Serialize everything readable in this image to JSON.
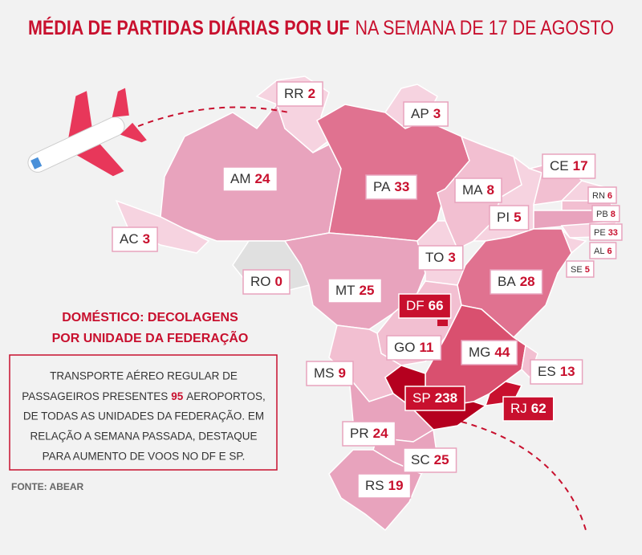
{
  "header": {
    "title": "MÉDIA DE PARTIDAS DIÁRIAS POR UF",
    "subtitle": "NA SEMANA DE 17 DE AGOSTO"
  },
  "legend": {
    "lines": [
      "DOMÉSTICO:  DECOLAGENS",
      "POR UNIDADE DA FEDERAÇÃO"
    ]
  },
  "note": {
    "lines": [
      "TRANSPORTE AÉREO REGULAR DE",
      {
        "before": "PASSAGEIROS PRESENTES",
        "highlight": "95",
        "after": "AEROPORTOS,"
      },
      "DE TODAS AS UNIDADES DA FEDERAÇÃO. EM",
      "RELAÇÃO A SEMANA PASSADA, DESTAQUE",
      "PARA AUMENTO DE VOOS NO DF E SP."
    ]
  },
  "source": "FONTE: ABEAR",
  "states": [
    {
      "code": "RR",
      "value": 2
    },
    {
      "code": "AP",
      "value": 3
    },
    {
      "code": "AM",
      "value": 24
    },
    {
      "code": "PA",
      "value": 33
    },
    {
      "code": "MA",
      "value": 8
    },
    {
      "code": "CE",
      "value": 17
    },
    {
      "code": "RN",
      "value": 6
    },
    {
      "code": "PB",
      "value": 8
    },
    {
      "code": "PE",
      "value": 33
    },
    {
      "code": "AL",
      "value": 6
    },
    {
      "code": "SE",
      "value": 5
    },
    {
      "code": "AC",
      "value": 3
    },
    {
      "code": "PI",
      "value": 5
    },
    {
      "code": "TO",
      "value": 3
    },
    {
      "code": "RO",
      "value": 0
    },
    {
      "code": "BA",
      "value": 28
    },
    {
      "code": "MT",
      "value": 25
    },
    {
      "code": "DF",
      "value": 66
    },
    {
      "code": "GO",
      "value": 11
    },
    {
      "code": "MG",
      "value": 44
    },
    {
      "code": "MS",
      "value": 9
    },
    {
      "code": "ES",
      "value": 13
    },
    {
      "code": "SP",
      "value": 238
    },
    {
      "code": "RJ",
      "value": 62
    },
    {
      "code": "PR",
      "value": 24
    },
    {
      "code": "SC",
      "value": 25
    },
    {
      "code": "RS",
      "value": 19
    }
  ]
}
